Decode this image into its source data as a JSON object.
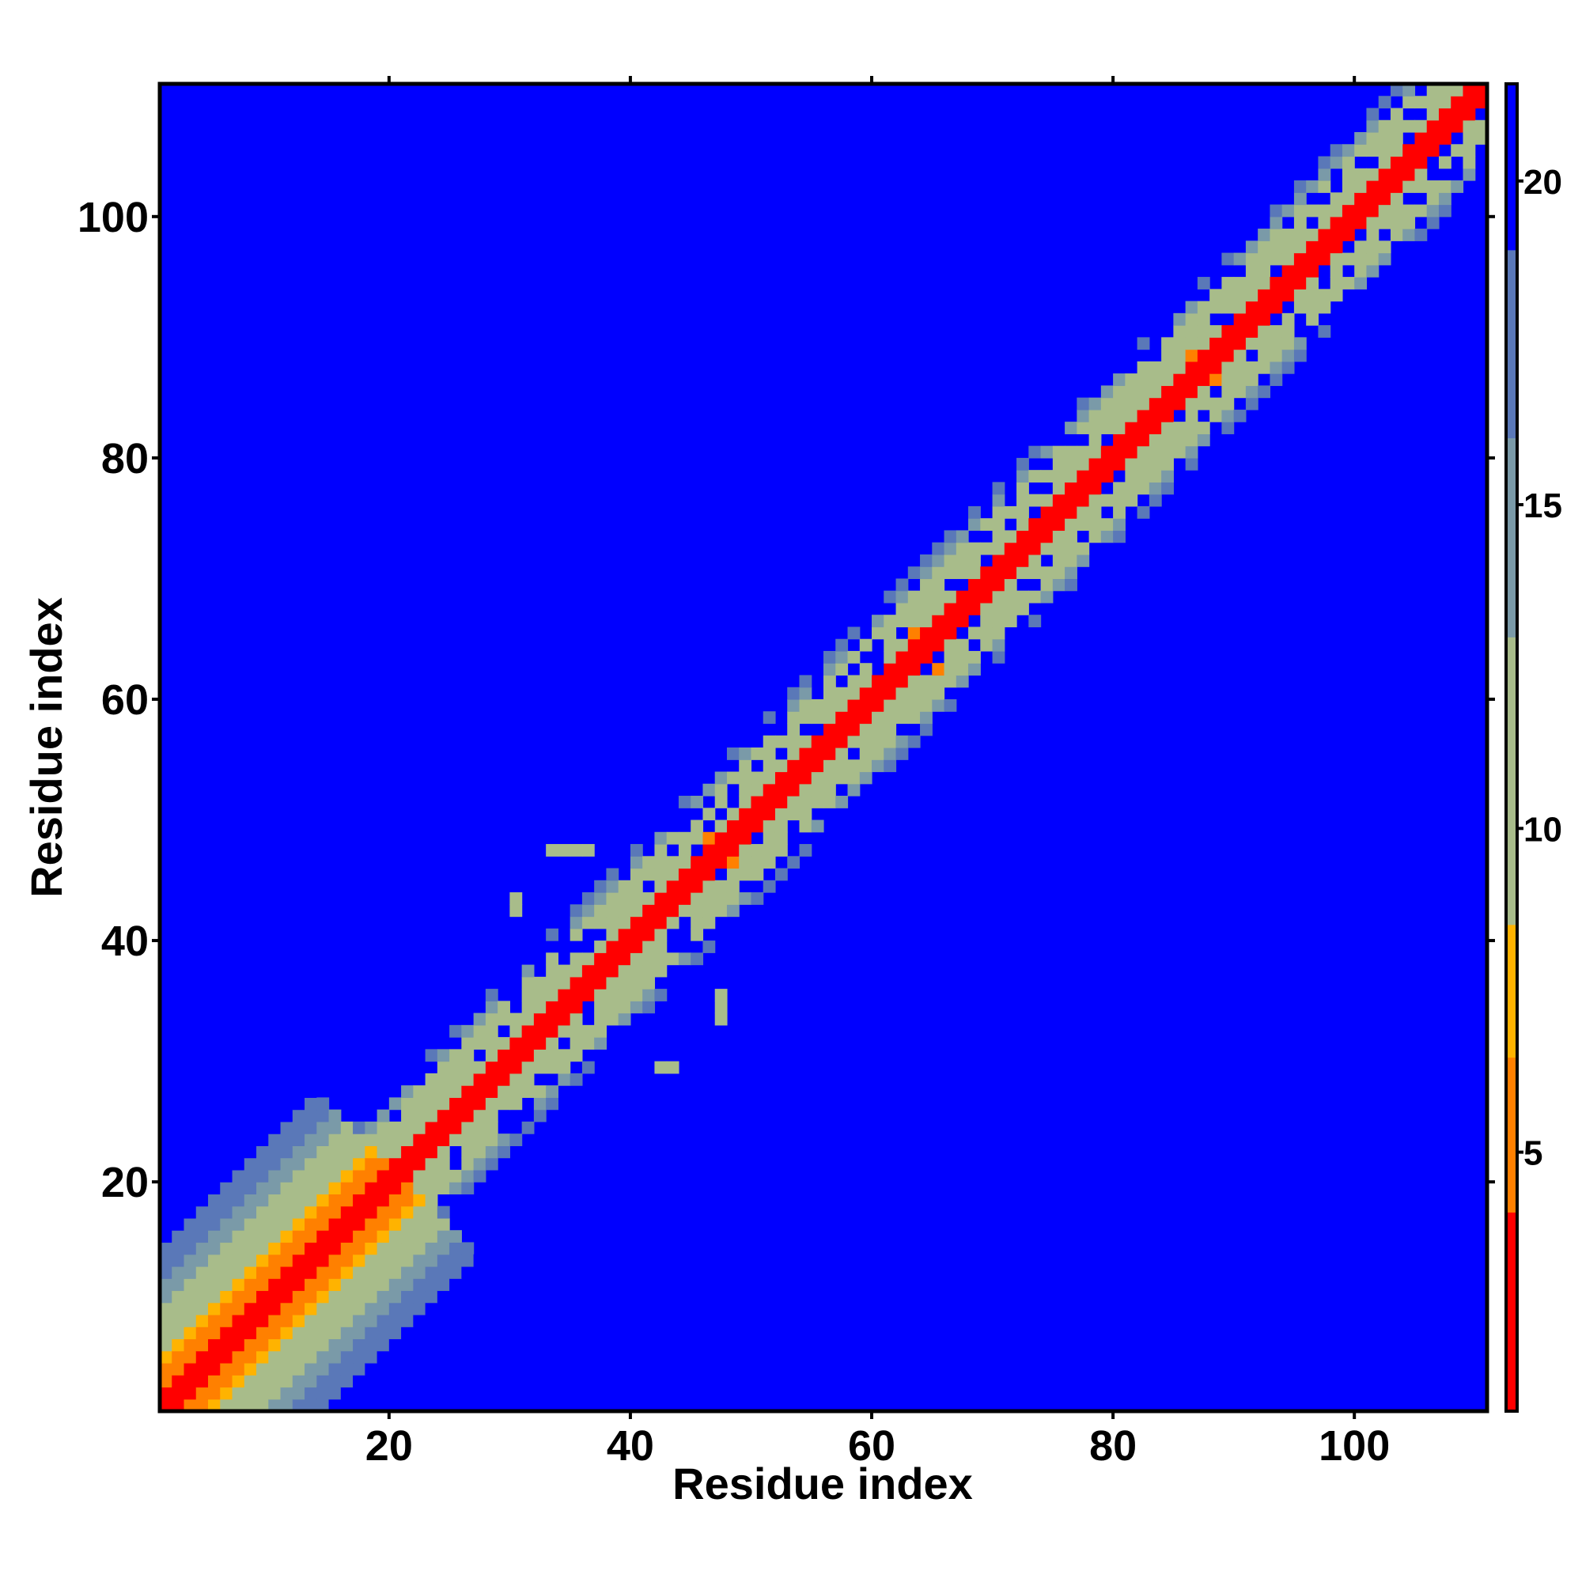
{
  "chart_data": {
    "type": "heatmap",
    "title": "",
    "xlabel": "Residue index",
    "ylabel": "Residue index",
    "xlim": [
      1,
      111
    ],
    "ylim": [
      1,
      111
    ],
    "x_ticks": [
      "20",
      "40",
      "60",
      "80",
      "100"
    ],
    "y_ticks": [
      "20",
      "40",
      "60",
      "80",
      "100"
    ],
    "colorbar": {
      "range": [
        1,
        21.5
      ],
      "ticks": [
        "5",
        "10",
        "15",
        "20"
      ],
      "colors": {
        "near": "#ff0000",
        "mid_near": "#ff8000",
        "mid": "#ffb300",
        "far_light": "#a8bc8a",
        "far_mid": "#7a9aa8",
        "far_dark": "#5a78b8",
        "background": "#0000ff"
      }
    },
    "matrix_description": {
      "n_residues": 110,
      "diagonal_value": 0,
      "background_value": 21.5,
      "band": [
        {
          "from_residue": 1,
          "to_residue": 20,
          "orange_width": 4,
          "green_width": 9,
          "blue_fringe_width": 14
        },
        {
          "from_residue": 20,
          "to_residue": 110,
          "orange_width": 1.5,
          "green_width": 5,
          "blue_fringe_width": 7
        }
      ],
      "extra_contacts": [
        {
          "x": 33,
          "y": 47,
          "value": 13
        },
        {
          "x": 34,
          "y": 47,
          "value": 13
        },
        {
          "x": 35,
          "y": 47,
          "value": 13
        },
        {
          "x": 36,
          "y": 47,
          "value": 13
        },
        {
          "x": 30,
          "y": 43,
          "value": 12
        },
        {
          "x": 30,
          "y": 42,
          "value": 12
        },
        {
          "x": 47,
          "y": 35,
          "value": 12
        },
        {
          "x": 47,
          "y": 34,
          "value": 12
        },
        {
          "x": 47,
          "y": 33,
          "value": 12
        },
        {
          "x": 42,
          "y": 29,
          "value": 12
        },
        {
          "x": 43,
          "y": 29,
          "value": 12
        },
        {
          "x": 86,
          "y": 88,
          "value": 6
        },
        {
          "x": 88,
          "y": 86,
          "value": 6
        },
        {
          "x": 63,
          "y": 65,
          "value": 6
        },
        {
          "x": 65,
          "y": 62,
          "value": 6
        },
        {
          "x": 48,
          "y": 46,
          "value": 6
        },
        {
          "x": 46,
          "y": 48,
          "value": 6
        }
      ]
    }
  }
}
